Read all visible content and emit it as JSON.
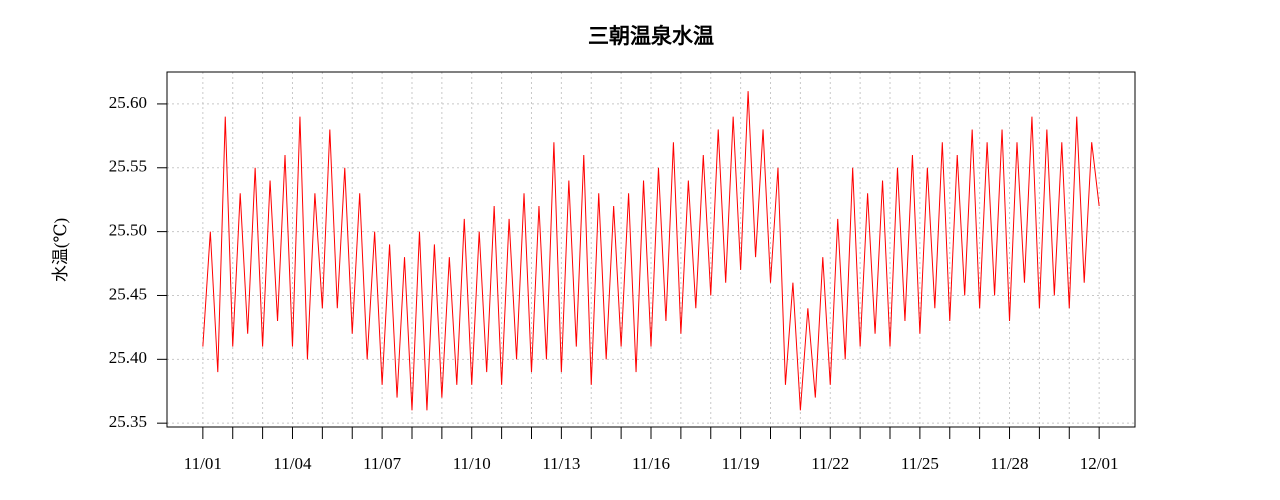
{
  "chart_data": {
    "type": "line",
    "title": "三朝温泉水温",
    "ylabel": "水温(℃)",
    "x": [
      0,
      0.25,
      0.5,
      0.75,
      1,
      1.25,
      1.5,
      1.75,
      2,
      2.25,
      2.5,
      2.75,
      3,
      3.25,
      3.5,
      3.75,
      4,
      4.25,
      4.5,
      4.75,
      5,
      5.25,
      5.5,
      5.75,
      6,
      6.25,
      6.5,
      6.75,
      7,
      7.25,
      7.5,
      7.75,
      8,
      8.25,
      8.5,
      8.75,
      9,
      9.25,
      9.5,
      9.75,
      10,
      10.25,
      10.5,
      10.75,
      11,
      11.25,
      11.5,
      11.75,
      12,
      12.25,
      12.5,
      12.75,
      13,
      13.25,
      13.5,
      13.75,
      14,
      14.25,
      14.5,
      14.75,
      15,
      15.25,
      15.5,
      15.75,
      16,
      16.25,
      16.5,
      16.75,
      17,
      17.25,
      17.5,
      17.75,
      18,
      18.25,
      18.5,
      18.75,
      19,
      19.25,
      19.5,
      19.75,
      20,
      20.25,
      20.5,
      20.75,
      21,
      21.25,
      21.5,
      21.75,
      22,
      22.25,
      22.5,
      22.75,
      23,
      23.25,
      23.5,
      23.75,
      24,
      24.25,
      24.5,
      24.75,
      25,
      25.25,
      25.5,
      25.75,
      26,
      26.25,
      26.5,
      26.75,
      27,
      27.25,
      27.5,
      27.75,
      28,
      28.25,
      28.5,
      28.75,
      29,
      29.25,
      29.5,
      29.75,
      30
    ],
    "series": [
      {
        "color": "#ff0000",
        "values": [
          25.41,
          25.5,
          25.39,
          25.59,
          25.41,
          25.53,
          25.42,
          25.55,
          25.41,
          25.54,
          25.43,
          25.56,
          25.41,
          25.59,
          25.4,
          25.53,
          25.44,
          25.58,
          25.44,
          25.55,
          25.42,
          25.53,
          25.4,
          25.5,
          25.38,
          25.49,
          25.37,
          25.48,
          25.36,
          25.5,
          25.36,
          25.49,
          25.37,
          25.48,
          25.38,
          25.51,
          25.38,
          25.5,
          25.39,
          25.52,
          25.38,
          25.51,
          25.4,
          25.53,
          25.39,
          25.52,
          25.4,
          25.57,
          25.39,
          25.54,
          25.41,
          25.56,
          25.38,
          25.53,
          25.4,
          25.52,
          25.41,
          25.53,
          25.39,
          25.54,
          25.41,
          25.55,
          25.43,
          25.57,
          25.42,
          25.54,
          25.44,
          25.56,
          25.45,
          25.58,
          25.46,
          25.59,
          25.47,
          25.61,
          25.48,
          25.58,
          25.46,
          25.55,
          25.38,
          25.46,
          25.36,
          25.44,
          25.37,
          25.48,
          25.38,
          25.51,
          25.4,
          25.55,
          25.41,
          25.53,
          25.42,
          25.54,
          25.41,
          25.55,
          25.43,
          25.56,
          25.42,
          25.55,
          25.44,
          25.57,
          25.43,
          25.56,
          25.45,
          25.58,
          25.44,
          25.57,
          25.45,
          25.58,
          25.43,
          25.57,
          25.46,
          25.59,
          25.44,
          25.58,
          25.45,
          25.57,
          25.44,
          25.59,
          25.46,
          25.57,
          25.52
        ]
      }
    ],
    "xlim": [
      -1.2,
      31.2
    ],
    "xticks": [
      {
        "value": 0,
        "label": "11/01"
      },
      {
        "value": 3,
        "label": "11/04"
      },
      {
        "value": 6,
        "label": "11/07"
      },
      {
        "value": 9,
        "label": "11/10"
      },
      {
        "value": 12,
        "label": "11/13"
      },
      {
        "value": 15,
        "label": "11/16"
      },
      {
        "value": 18,
        "label": "11/19"
      },
      {
        "value": 21,
        "label": "11/22"
      },
      {
        "value": 24,
        "label": "11/25"
      },
      {
        "value": 27,
        "label": "11/28"
      },
      {
        "value": 30,
        "label": "12/01"
      }
    ],
    "xminorticks": [
      1,
      2,
      4,
      5,
      7,
      8,
      10,
      11,
      13,
      14,
      16,
      17,
      19,
      20,
      22,
      23,
      25,
      26,
      28,
      29
    ],
    "ylim": [
      25.347,
      25.625
    ],
    "yticks": [
      25.35,
      {
        "value": 25.4,
        "label": "25.40"
      },
      25.45,
      {
        "value": 25.5,
        "label": "25.50"
      },
      25.55,
      {
        "value": 25.6,
        "label": "25.60"
      }
    ],
    "grid": true
  }
}
